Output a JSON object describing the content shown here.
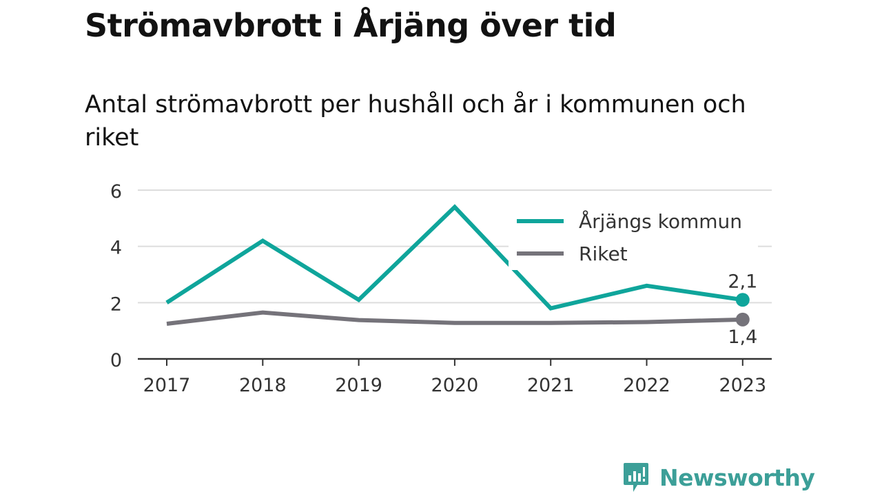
{
  "title": "Strömavbrott i Årjäng över tid",
  "subtitle": "Antal strömavbrott per hushåll och år i kommunen och riket",
  "brand": "Newsworthy",
  "colors": {
    "arjang": "#0fa59b",
    "riket": "#75737a",
    "grid": "#dddddd",
    "axis": "#333333",
    "brand": "#3c9f98"
  },
  "chart_data": {
    "type": "line",
    "x": [
      "2017",
      "2018",
      "2019",
      "2020",
      "2021",
      "2022",
      "2023"
    ],
    "y_ticks": [
      "0",
      "2",
      "4",
      "6"
    ],
    "ylim": [
      0,
      6
    ],
    "grid": "horizontal",
    "legend_position": "top-right",
    "series": [
      {
        "name": "Årjängs kommun",
        "values": [
          2.0,
          4.2,
          2.1,
          5.4,
          1.8,
          2.6,
          2.1
        ],
        "end_label": "2,1"
      },
      {
        "name": "Riket",
        "values": [
          1.25,
          1.65,
          1.38,
          1.28,
          1.28,
          1.31,
          1.4
        ],
        "end_label": "1,4"
      }
    ]
  }
}
